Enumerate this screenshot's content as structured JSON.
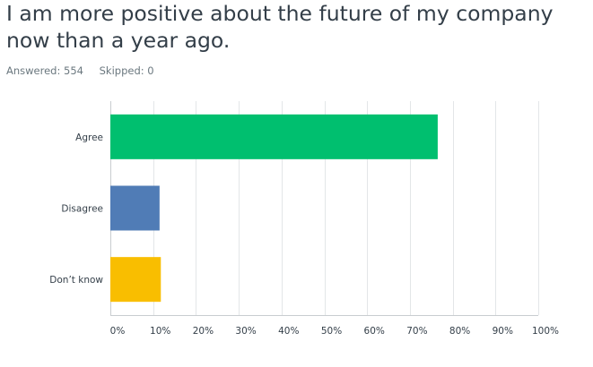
{
  "question": {
    "title": "I am more positive about the future of my company now than a year ago."
  },
  "meta": {
    "answered": "Answered: 554",
    "skipped": "Skipped: 0"
  },
  "chart_data": {
    "type": "bar",
    "orientation": "horizontal",
    "categories": [
      "Agree",
      "Disagree",
      "Don’t know"
    ],
    "values": [
      76.5,
      11.5,
      11.8
    ],
    "colors": [
      "#00bf6f",
      "#507cb6",
      "#f9be00"
    ],
    "xlim": [
      0,
      100
    ],
    "xticks": [
      0,
      10,
      20,
      30,
      40,
      50,
      60,
      70,
      80,
      90,
      100
    ],
    "xtick_labels": [
      "0%",
      "10%",
      "20%",
      "30%",
      "40%",
      "50%",
      "60%",
      "70%",
      "80%",
      "90%",
      "100%"
    ],
    "grid": true,
    "legend": "none",
    "title": "",
    "xlabel": "",
    "ylabel": ""
  }
}
